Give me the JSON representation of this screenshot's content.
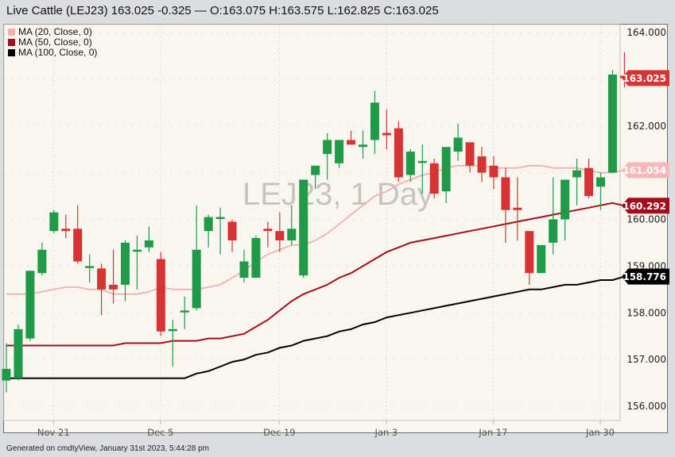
{
  "header": {
    "title": "Live Cattle (LEJ23) 163.025 -0.325 — O:163.075 H:163.575 L:162.825 C:163.025"
  },
  "legend": [
    {
      "label": "MA (20, Close, 0)",
      "color": "#f4aeb0"
    },
    {
      "label": "MA (50, Close, 0)",
      "color": "#a50d1a"
    },
    {
      "label": "MA (100, Close, 0)",
      "color": "#000000"
    }
  ],
  "watermark": "LEJ23, 1 Day",
  "footer": "Generated on cmdtyView, January 31st 2023, 5:44:28 pm",
  "colors": {
    "up": "#1e9a48",
    "down": "#d63434",
    "background": "#f9f6f0",
    "grid": "#cfcac0"
  },
  "chart_data": {
    "type": "candlestick",
    "title": "Live Cattle (LEJ23) 1 Day",
    "symbol": "LEJ23",
    "interval": "1 Day",
    "last": {
      "price": 163.025,
      "change": -0.325,
      "open": 163.075,
      "high": 163.575,
      "low": 162.825,
      "close": 163.025
    },
    "y_ticks": [
      164.0,
      163.0,
      162.0,
      161.0,
      160.0,
      159.0,
      158.0,
      157.0,
      156.0
    ],
    "y_tick_labels_visible": [
      "164.000",
      "162.000",
      "160.000",
      "159.000",
      "158.000",
      "157.000",
      "156.000"
    ],
    "ylim": [
      155.75,
      164.2
    ],
    "x_tick_labels": [
      "Nov 21",
      "Dec 5",
      "Dec 19",
      "Jan 3",
      "Jan 17",
      "Jan 30"
    ],
    "x_tick_bar_index": [
      4,
      13,
      23,
      32,
      41,
      50
    ],
    "price_labels": [
      {
        "value": "163.025",
        "color": "#d63434",
        "text_color": "#ffffff"
      },
      {
        "value": "161.054",
        "color": "#f7b7b9",
        "text_color": "#ffffff"
      },
      {
        "value": "160.292",
        "color": "#a50d1a",
        "text_color": "#ffffff"
      },
      {
        "value": "158.776",
        "color": "#000000",
        "text_color": "#ffffff"
      }
    ],
    "candles": [
      {
        "o": 156.55,
        "h": 157.35,
        "l": 156.3,
        "c": 156.8
      },
      {
        "o": 156.6,
        "h": 157.75,
        "l": 156.55,
        "c": 157.65
      },
      {
        "o": 157.45,
        "h": 158.9,
        "l": 157.4,
        "c": 158.9
      },
      {
        "o": 158.85,
        "h": 159.5,
        "l": 158.8,
        "c": 159.35
      },
      {
        "o": 159.75,
        "h": 160.2,
        "l": 159.7,
        "c": 160.15
      },
      {
        "o": 159.8,
        "h": 160.1,
        "l": 159.6,
        "c": 159.75
      },
      {
        "o": 159.8,
        "h": 160.3,
        "l": 159.05,
        "c": 159.1
      },
      {
        "o": 159.0,
        "h": 159.25,
        "l": 158.65,
        "c": 159.0
      },
      {
        "o": 158.95,
        "h": 159.05,
        "l": 157.95,
        "c": 158.5
      },
      {
        "o": 158.6,
        "h": 159.35,
        "l": 158.2,
        "c": 158.5
      },
      {
        "o": 158.6,
        "h": 159.55,
        "l": 158.25,
        "c": 159.5
      },
      {
        "o": 159.35,
        "h": 159.65,
        "l": 158.5,
        "c": 159.35
      },
      {
        "o": 159.4,
        "h": 159.85,
        "l": 159.3,
        "c": 159.55
      },
      {
        "o": 159.15,
        "h": 159.3,
        "l": 157.5,
        "c": 157.6
      },
      {
        "o": 157.65,
        "h": 157.85,
        "l": 156.85,
        "c": 157.65
      },
      {
        "o": 158.05,
        "h": 158.35,
        "l": 157.65,
        "c": 158.05
      },
      {
        "o": 158.1,
        "h": 160.3,
        "l": 158.05,
        "c": 159.35
      },
      {
        "o": 159.75,
        "h": 160.1,
        "l": 159.4,
        "c": 160.05
      },
      {
        "o": 160.05,
        "h": 160.25,
        "l": 159.25,
        "c": 160.05
      },
      {
        "o": 159.95,
        "h": 160.0,
        "l": 159.3,
        "c": 159.55
      },
      {
        "o": 158.75,
        "h": 159.35,
        "l": 158.65,
        "c": 159.1
      },
      {
        "o": 158.75,
        "h": 159.65,
        "l": 158.75,
        "c": 159.6
      },
      {
        "o": 159.8,
        "h": 159.95,
        "l": 159.4,
        "c": 159.75
      },
      {
        "o": 159.75,
        "h": 160.15,
        "l": 159.3,
        "c": 159.55
      },
      {
        "o": 159.55,
        "h": 160.3,
        "l": 159.45,
        "c": 159.8
      },
      {
        "o": 158.8,
        "h": 160.8,
        "l": 158.75,
        "c": 160.85
      },
      {
        "o": 160.95,
        "h": 161.05,
        "l": 160.65,
        "c": 161.15
      },
      {
        "o": 161.4,
        "h": 161.85,
        "l": 160.85,
        "c": 161.7
      },
      {
        "o": 161.2,
        "h": 161.5,
        "l": 161.1,
        "c": 161.7
      },
      {
        "o": 161.7,
        "h": 161.9,
        "l": 161.6,
        "c": 161.6
      },
      {
        "o": 161.55,
        "h": 161.9,
        "l": 161.3,
        "c": 161.6
      },
      {
        "o": 161.7,
        "h": 162.75,
        "l": 161.4,
        "c": 162.5
      },
      {
        "o": 161.85,
        "h": 162.35,
        "l": 161.5,
        "c": 161.8
      },
      {
        "o": 161.95,
        "h": 162.1,
        "l": 160.8,
        "c": 160.9
      },
      {
        "o": 160.95,
        "h": 161.5,
        "l": 160.8,
        "c": 161.45
      },
      {
        "o": 161.25,
        "h": 161.6,
        "l": 160.55,
        "c": 161.25
      },
      {
        "o": 161.2,
        "h": 161.3,
        "l": 160.45,
        "c": 160.55
      },
      {
        "o": 160.6,
        "h": 161.3,
        "l": 160.35,
        "c": 161.55
      },
      {
        "o": 161.45,
        "h": 162.05,
        "l": 161.25,
        "c": 161.75
      },
      {
        "o": 161.65,
        "h": 161.65,
        "l": 161.0,
        "c": 161.15
      },
      {
        "o": 161.35,
        "h": 161.55,
        "l": 160.8,
        "c": 161.0
      },
      {
        "o": 161.15,
        "h": 161.35,
        "l": 160.65,
        "c": 160.9
      },
      {
        "o": 160.9,
        "h": 161.1,
        "l": 159.5,
        "c": 160.2
      },
      {
        "o": 160.25,
        "h": 160.9,
        "l": 159.55,
        "c": 160.2
      },
      {
        "o": 159.75,
        "h": 159.75,
        "l": 158.6,
        "c": 158.85
      },
      {
        "o": 158.85,
        "h": 159.45,
        "l": 158.95,
        "c": 159.45
      },
      {
        "o": 159.5,
        "h": 160.9,
        "l": 159.25,
        "c": 160.0
      },
      {
        "o": 160.0,
        "h": 160.7,
        "l": 159.55,
        "c": 160.85
      },
      {
        "o": 160.9,
        "h": 161.3,
        "l": 160.3,
        "c": 161.05
      },
      {
        "o": 161.1,
        "h": 161.3,
        "l": 160.45,
        "c": 160.5
      },
      {
        "o": 160.7,
        "h": 161.0,
        "l": 160.2,
        "c": 160.9
      },
      {
        "o": 161.0,
        "h": 163.2,
        "l": 161.0,
        "c": 163.1
      },
      {
        "o": 163.075,
        "h": 163.575,
        "l": 162.825,
        "c": 163.025
      }
    ],
    "ma20": [
      158.4,
      158.4,
      158.45,
      158.5,
      158.55,
      158.55,
      158.5,
      158.5,
      158.4,
      158.4,
      158.4,
      158.45,
      158.55,
      158.5,
      158.5,
      158.5,
      158.55,
      158.6,
      158.75,
      158.9,
      159.1,
      159.25,
      159.35,
      159.45,
      159.45,
      159.55,
      159.7,
      159.9,
      160.1,
      160.3,
      160.5,
      160.6,
      160.75,
      160.85,
      160.95,
      161.0,
      161.1,
      161.15,
      161.15,
      161.15,
      161.1,
      161.1,
      161.1,
      161.15,
      161.15,
      161.1,
      161.1,
      161.1,
      161.05,
      161.0,
      161.0,
      161.054
    ],
    "ma50": [
      157.3,
      157.3,
      157.3,
      157.3,
      157.3,
      157.35,
      157.35,
      157.35,
      157.35,
      157.4,
      157.4,
      157.4,
      157.45,
      157.45,
      157.5,
      157.55,
      157.7,
      157.85,
      158.05,
      158.25,
      158.4,
      158.5,
      158.6,
      158.75,
      158.85,
      159.0,
      159.15,
      159.3,
      159.4,
      159.5,
      159.55,
      159.6,
      159.65,
      159.7,
      159.75,
      159.8,
      159.85,
      159.9,
      159.95,
      160.0,
      160.05,
      160.1,
      160.15,
      160.2,
      160.25,
      160.3,
      160.35,
      160.292
    ],
    "ma100": [
      156.6,
      156.7,
      156.75,
      156.85,
      156.95,
      157.0,
      157.1,
      157.15,
      157.25,
      157.3,
      157.4,
      157.45,
      157.5,
      157.6,
      157.65,
      157.75,
      157.8,
      157.9,
      157.95,
      158.0,
      158.05,
      158.1,
      158.15,
      158.2,
      158.25,
      158.3,
      158.35,
      158.4,
      158.45,
      158.5,
      158.5,
      158.55,
      158.6,
      158.6,
      158.65,
      158.7,
      158.7,
      158.776
    ]
  }
}
